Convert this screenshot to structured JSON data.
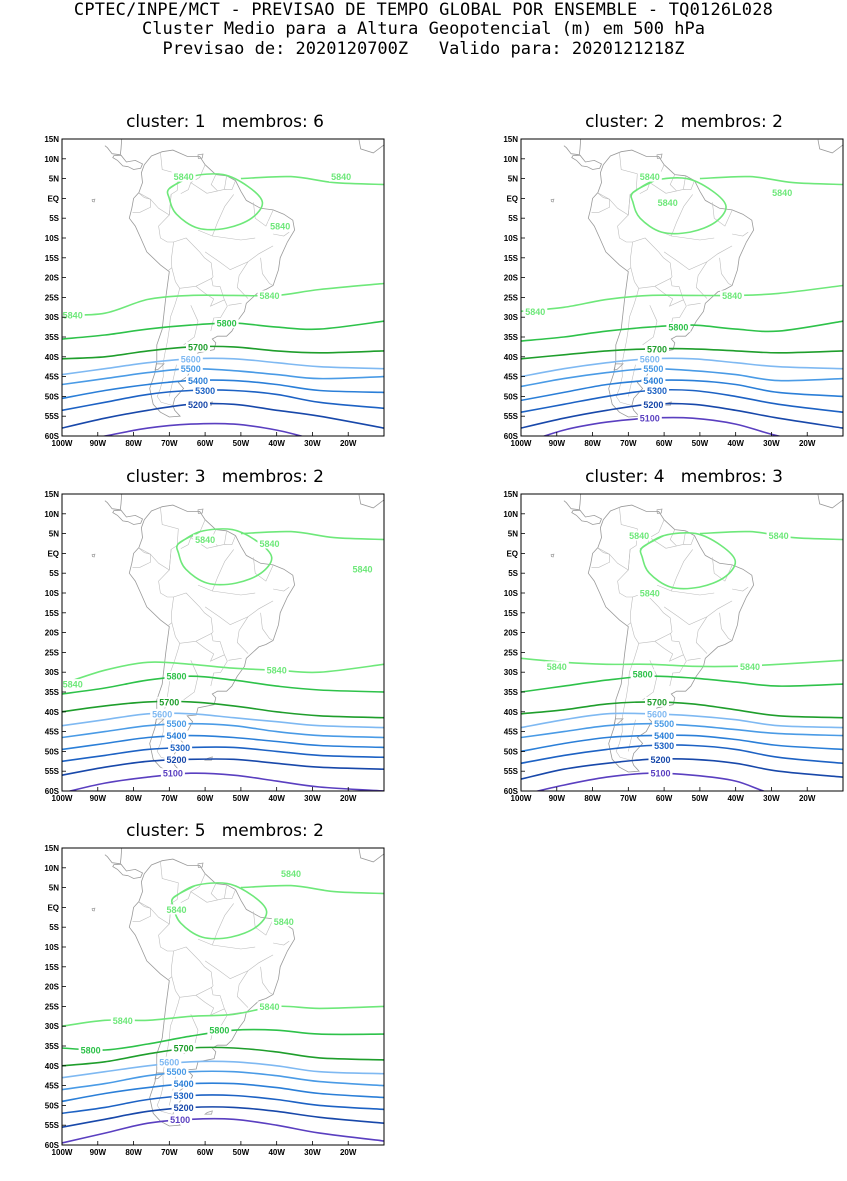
{
  "header": {
    "line1": "CPTEC/INPE/MCT - PREVISAO DE TEMPO GLOBAL POR ENSEMBLE - TQ0126L028",
    "line2": "Cluster Medio para a Altura Geopotencial (m) em 500 hPa",
    "line3": "Previsao de: 2020120700Z   Valido para: 2020121218Z"
  },
  "axes": {
    "lat_labels": [
      "15N",
      "10N",
      "5N",
      "EQ",
      "5S",
      "10S",
      "15S",
      "20S",
      "25S",
      "30S",
      "35S",
      "40S",
      "45S",
      "50S",
      "55S",
      "60S"
    ],
    "lon_labels": [
      "100W",
      "90W",
      "80W",
      "70W",
      "60W",
      "50W",
      "40W",
      "30W",
      "20W"
    ],
    "lat_range": [
      -60,
      15
    ],
    "lon_range": [
      -100,
      -10
    ]
  },
  "contour_levels": [
    {
      "value": 5840,
      "color": "#6ee87a"
    },
    {
      "value": 5800,
      "color": "#2ec24a"
    },
    {
      "value": 5700,
      "color": "#1f9e2c"
    },
    {
      "value": 5600,
      "color": "#7fb9f2"
    },
    {
      "value": 5500,
      "color": "#4a9be6"
    },
    {
      "value": 5400,
      "color": "#2b7fd8"
    },
    {
      "value": 5300,
      "color": "#1d62c4"
    },
    {
      "value": 5200,
      "color": "#1848aa"
    },
    {
      "value": 5100,
      "color": "#5a3fc0"
    }
  ],
  "panels": [
    {
      "title": "cluster: 1   membros: 6",
      "shows_5100_label": false,
      "labels": [
        {
          "text": "5840",
          "lon": -66,
          "lat": 5.5
        },
        {
          "text": "5840",
          "lon": -22,
          "lat": 5.5
        },
        {
          "text": "5840",
          "lon": -39,
          "lat": -7
        },
        {
          "text": "5840",
          "lon": -42,
          "lat": -24.5
        },
        {
          "text": "5840",
          "lon": -97,
          "lat": -29.5
        },
        {
          "text": "5800",
          "lon": -54,
          "lat": -31.5
        },
        {
          "text": "5700",
          "lon": -62,
          "lat": -37.5
        },
        {
          "text": "5600",
          "lon": -64,
          "lat": -40.5
        },
        {
          "text": "5500",
          "lon": -64,
          "lat": -43
        },
        {
          "text": "5400",
          "lon": -62,
          "lat": -46
        },
        {
          "text": "5300",
          "lon": -60,
          "lat": -48.5
        },
        {
          "text": "5200",
          "lon": -62,
          "lat": -52
        }
      ],
      "bands": [
        {
          "value": 5840,
          "lats": [
            -29.5,
            -29,
            -25.5,
            -24.5,
            -24.5,
            -24.5,
            -23,
            -21.5
          ]
        },
        {
          "value": 5800,
          "lats": [
            -35.5,
            -34.5,
            -33,
            -32,
            -31.5,
            -32.5,
            -33,
            -31
          ]
        },
        {
          "value": 5700,
          "lats": [
            -40.5,
            -40,
            -38.5,
            -37.5,
            -37.5,
            -38.5,
            -39,
            -38.5
          ]
        },
        {
          "value": 5600,
          "lats": [
            -44.5,
            -43,
            -41.5,
            -40.5,
            -40.5,
            -41.5,
            -42.5,
            -43
          ]
        },
        {
          "value": 5500,
          "lats": [
            -47,
            -45.5,
            -44,
            -43,
            -43.5,
            -44.5,
            -45.5,
            -45
          ]
        },
        {
          "value": 5400,
          "lats": [
            -50.5,
            -48.5,
            -47,
            -46,
            -46,
            -47,
            -48.5,
            -49
          ]
        },
        {
          "value": 5300,
          "lats": [
            -53.5,
            -51.5,
            -49.5,
            -48.5,
            -48.5,
            -49.5,
            -51.5,
            -53
          ]
        },
        {
          "value": 5200,
          "lats": [
            -58,
            -55.5,
            -53.5,
            -52,
            -52,
            -53.5,
            -55,
            -58
          ]
        },
        {
          "value": 5100,
          "lats": [
            -62,
            -60,
            -58,
            -57,
            -57,
            -58.5,
            -61,
            -63
          ]
        }
      ]
    },
    {
      "title": "cluster: 2   membros: 2",
      "shows_5100_label": true,
      "labels": [
        {
          "text": "5840",
          "lon": -64,
          "lat": 5.5
        },
        {
          "text": "5840",
          "lon": -27,
          "lat": 1.5
        },
        {
          "text": "5840",
          "lon": -59,
          "lat": -1
        },
        {
          "text": "5840",
          "lon": -41,
          "lat": -24.5
        },
        {
          "text": "5840",
          "lon": -96,
          "lat": -28.5
        },
        {
          "text": "5800",
          "lon": -56,
          "lat": -32.5
        },
        {
          "text": "5700",
          "lon": -62,
          "lat": -38
        },
        {
          "text": "5600",
          "lon": -64,
          "lat": -40.5
        },
        {
          "text": "5500",
          "lon": -63,
          "lat": -43
        },
        {
          "text": "5400",
          "lon": -63,
          "lat": -46
        },
        {
          "text": "5300",
          "lon": -62,
          "lat": -48.5
        },
        {
          "text": "5200",
          "lon": -63,
          "lat": -52
        },
        {
          "text": "5100",
          "lon": -64,
          "lat": -55.5
        }
      ],
      "bands": [
        {
          "value": 5840,
          "lats": [
            -28.5,
            -27.5,
            -25.5,
            -24.5,
            -24.5,
            -24.5,
            -24,
            -22
          ]
        },
        {
          "value": 5800,
          "lats": [
            -36,
            -35,
            -33.5,
            -32.5,
            -32,
            -33,
            -33.5,
            -31
          ]
        },
        {
          "value": 5700,
          "lats": [
            -40.5,
            -39.5,
            -38.5,
            -38,
            -38,
            -38.5,
            -39,
            -38.5
          ]
        },
        {
          "value": 5600,
          "lats": [
            -45,
            -43,
            -41.5,
            -40.5,
            -40.5,
            -41.5,
            -42.5,
            -43
          ]
        },
        {
          "value": 5500,
          "lats": [
            -47.5,
            -45.5,
            -44,
            -43,
            -43.5,
            -44.5,
            -46,
            -45.5
          ]
        },
        {
          "value": 5400,
          "lats": [
            -51,
            -49,
            -47,
            -46,
            -46,
            -47,
            -49,
            -50
          ]
        },
        {
          "value": 5300,
          "lats": [
            -54,
            -52,
            -50,
            -48.5,
            -48.5,
            -50,
            -52,
            -54
          ]
        },
        {
          "value": 5200,
          "lats": [
            -58,
            -55.5,
            -53.5,
            -52,
            -52,
            -53.5,
            -55.5,
            -58
          ]
        },
        {
          "value": 5100,
          "lats": [
            -62,
            -58.5,
            -56.5,
            -55.5,
            -55.5,
            -57,
            -60,
            -63
          ]
        }
      ]
    },
    {
      "title": "cluster: 3   membros: 2",
      "shows_5100_label": true,
      "labels": [
        {
          "text": "5840",
          "lon": -60,
          "lat": 3.5
        },
        {
          "text": "5840",
          "lon": -42,
          "lat": 2.5
        },
        {
          "text": "5840",
          "lon": -16,
          "lat": -4
        },
        {
          "text": "5840",
          "lon": -97,
          "lat": -33
        },
        {
          "text": "5840",
          "lon": -40,
          "lat": -29.5
        },
        {
          "text": "5800",
          "lon": -68,
          "lat": -31
        },
        {
          "text": "5700",
          "lon": -70,
          "lat": -37.5
        },
        {
          "text": "5600",
          "lon": -72,
          "lat": -40.5
        },
        {
          "text": "5500",
          "lon": -68,
          "lat": -43
        },
        {
          "text": "5400",
          "lon": -68,
          "lat": -46
        },
        {
          "text": "5300",
          "lon": -67,
          "lat": -49
        },
        {
          "text": "5200",
          "lon": -68,
          "lat": -52
        },
        {
          "text": "5100",
          "lon": -69,
          "lat": -55.5
        }
      ],
      "bands": [
        {
          "value": 5840,
          "lats": [
            -33,
            -29.5,
            -27.5,
            -28,
            -29,
            -29.5,
            -30,
            -28
          ]
        },
        {
          "value": 5800,
          "lats": [
            -35.5,
            -34,
            -32,
            -31,
            -32,
            -33.5,
            -34.5,
            -35
          ]
        },
        {
          "value": 5700,
          "lats": [
            -40,
            -38.5,
            -37.5,
            -37.5,
            -38.5,
            -40,
            -41,
            -41.5
          ]
        },
        {
          "value": 5600,
          "lats": [
            -43.5,
            -42,
            -40.5,
            -40.5,
            -41.5,
            -42.5,
            -43.5,
            -44
          ]
        },
        {
          "value": 5500,
          "lats": [
            -46.5,
            -45,
            -43.5,
            -43,
            -43.5,
            -45,
            -46,
            -46.5
          ]
        },
        {
          "value": 5400,
          "lats": [
            -49.5,
            -48,
            -46.5,
            -46,
            -46.5,
            -47.5,
            -48.5,
            -49
          ]
        },
        {
          "value": 5300,
          "lats": [
            -52.5,
            -51,
            -49.5,
            -49,
            -49,
            -50,
            -51,
            -51.5
          ]
        },
        {
          "value": 5200,
          "lats": [
            -56,
            -54,
            -52.5,
            -52,
            -52,
            -53,
            -54,
            -54.5
          ]
        },
        {
          "value": 5100,
          "lats": [
            -60.5,
            -58,
            -56.5,
            -55.5,
            -56,
            -57.5,
            -59,
            -60
          ]
        }
      ]
    },
    {
      "title": "cluster: 4   membros: 3",
      "shows_5100_label": true,
      "labels": [
        {
          "text": "5840",
          "lon": -67,
          "lat": 4.5
        },
        {
          "text": "5840",
          "lon": -28,
          "lat": 4.5
        },
        {
          "text": "5840",
          "lon": -64,
          "lat": -10
        },
        {
          "text": "5840",
          "lon": -90,
          "lat": -28.5
        },
        {
          "text": "5840",
          "lon": -36,
          "lat": -28.5
        },
        {
          "text": "5800",
          "lon": -66,
          "lat": -30.5
        },
        {
          "text": "5700",
          "lon": -62,
          "lat": -37.5
        },
        {
          "text": "5600",
          "lon": -62,
          "lat": -40.5
        },
        {
          "text": "5500",
          "lon": -60,
          "lat": -43
        },
        {
          "text": "5400",
          "lon": -60,
          "lat": -46
        },
        {
          "text": "5300",
          "lon": -60,
          "lat": -48.5
        },
        {
          "text": "5200",
          "lon": -61,
          "lat": -52
        },
        {
          "text": "5100",
          "lon": -61,
          "lat": -55.5
        }
      ],
      "bands": [
        {
          "value": 5840,
          "lats": [
            -26.5,
            -27.5,
            -28,
            -28,
            -28.5,
            -28.5,
            -28,
            -27
          ]
        },
        {
          "value": 5800,
          "lats": [
            -35,
            -33.5,
            -32,
            -31,
            -31.5,
            -32.5,
            -33.5,
            -33
          ]
        },
        {
          "value": 5700,
          "lats": [
            -40.5,
            -39.5,
            -38,
            -37.5,
            -38,
            -39.5,
            -41,
            -41.5
          ]
        },
        {
          "value": 5600,
          "lats": [
            -44,
            -42,
            -40.5,
            -40.5,
            -41,
            -42,
            -43.5,
            -44
          ]
        },
        {
          "value": 5500,
          "lats": [
            -46.5,
            -45,
            -43.5,
            -43,
            -43.5,
            -44.5,
            -45.5,
            -46
          ]
        },
        {
          "value": 5400,
          "lats": [
            -50,
            -48,
            -46.5,
            -46,
            -46,
            -47,
            -48.5,
            -49.5
          ]
        },
        {
          "value": 5300,
          "lats": [
            -53,
            -51,
            -49.5,
            -48.5,
            -48.5,
            -49.5,
            -51.5,
            -53
          ]
        },
        {
          "value": 5200,
          "lats": [
            -57,
            -54.5,
            -53,
            -52,
            -52,
            -53,
            -55,
            -56.5
          ]
        },
        {
          "value": 5100,
          "lats": [
            -61,
            -58.5,
            -56.5,
            -55.5,
            -56,
            -57.5,
            -61,
            -62
          ]
        }
      ]
    },
    {
      "title": "cluster: 5   membros: 2",
      "shows_5100_label": true,
      "labels": [
        {
          "text": "5840",
          "lon": -36,
          "lat": 8.5
        },
        {
          "text": "5840",
          "lon": -68,
          "lat": -0.5
        },
        {
          "text": "5840",
          "lon": -38,
          "lat": -3.5
        },
        {
          "text": "5840",
          "lon": -42,
          "lat": -25
        },
        {
          "text": "5840",
          "lon": -83,
          "lat": -28.5
        },
        {
          "text": "5800",
          "lon": -56,
          "lat": -31
        },
        {
          "text": "5800",
          "lon": -92,
          "lat": -36
        },
        {
          "text": "5700",
          "lon": -66,
          "lat": -35.5
        },
        {
          "text": "5600",
          "lon": -70,
          "lat": -39
        },
        {
          "text": "5500",
          "lon": -68,
          "lat": -41.5
        },
        {
          "text": "5400",
          "lon": -66,
          "lat": -44.5
        },
        {
          "text": "5300",
          "lon": -66,
          "lat": -47.5
        },
        {
          "text": "5200",
          "lon": -66,
          "lat": -50.5
        },
        {
          "text": "5100",
          "lon": -67,
          "lat": -53.5
        }
      ],
      "bands": [
        {
          "value": 5840,
          "lats": [
            -30,
            -28.5,
            -28.5,
            -27.5,
            -27,
            -25,
            -25.5,
            -25
          ]
        },
        {
          "value": 5800,
          "lats": [
            -35.5,
            -36,
            -34.5,
            -32.5,
            -31,
            -31,
            -32,
            -32
          ]
        },
        {
          "value": 5700,
          "lats": [
            -40,
            -39,
            -37,
            -35.5,
            -35.5,
            -36.5,
            -38,
            -38.5
          ]
        },
        {
          "value": 5600,
          "lats": [
            -43,
            -41.5,
            -40,
            -39,
            -39,
            -40,
            -41.5,
            -42
          ]
        },
        {
          "value": 5500,
          "lats": [
            -46,
            -44.5,
            -42.5,
            -41.5,
            -41.5,
            -42.5,
            -44,
            -45
          ]
        },
        {
          "value": 5400,
          "lats": [
            -49,
            -47,
            -45.5,
            -44.5,
            -44.5,
            -45.5,
            -47,
            -48
          ]
        },
        {
          "value": 5300,
          "lats": [
            -52,
            -50.5,
            -48.5,
            -47.5,
            -47.5,
            -48.5,
            -50,
            -51
          ]
        },
        {
          "value": 5200,
          "lats": [
            -55.5,
            -53.5,
            -51.5,
            -50.5,
            -50.5,
            -51.5,
            -53,
            -54.5
          ]
        },
        {
          "value": 5100,
          "lats": [
            -59.5,
            -57,
            -54.5,
            -53.5,
            -53.5,
            -55,
            -57,
            -59
          ]
        }
      ]
    }
  ]
}
